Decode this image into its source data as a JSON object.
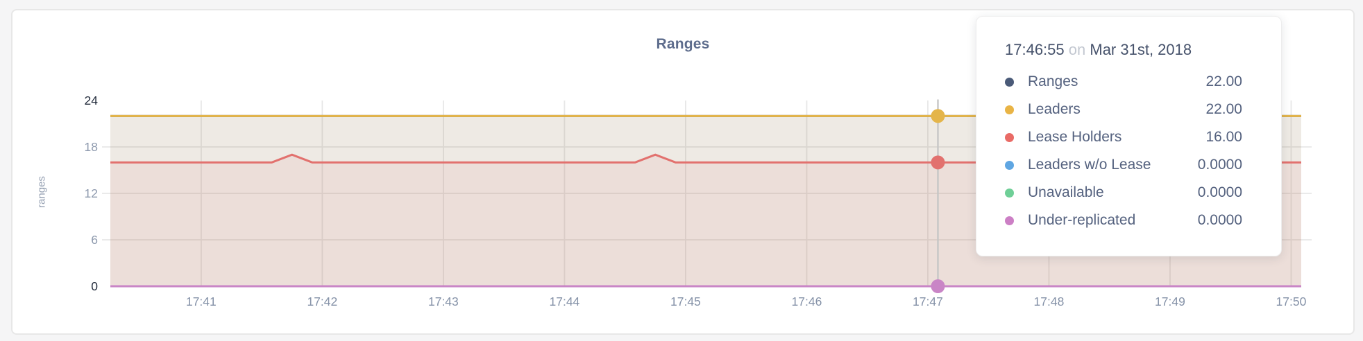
{
  "page": {
    "background": "#F5F5F6"
  },
  "card": {
    "background": "#FFFFFF",
    "border_color": "#E7E7E7"
  },
  "chart_data": {
    "type": "area",
    "title": "Ranges",
    "ylabel": "ranges",
    "xlabel": "",
    "ylim": [
      0,
      24
    ],
    "yticks": [
      0,
      6,
      12,
      18,
      24
    ],
    "xticks": [
      "17:41",
      "17:42",
      "17:43",
      "17:44",
      "17:45",
      "17:46",
      "17:47",
      "17:48",
      "17:49",
      "17:50"
    ],
    "x_range": [
      "17:40:15",
      "17:50:05"
    ],
    "grid": true,
    "grid_color": "#E7E7E7",
    "area_fill_opacity": 0.09,
    "legend_position": "tooltip",
    "series": [
      {
        "name": "Ranges",
        "color": "#4A5A78",
        "points": [
          [
            "17:40:15",
            22
          ],
          [
            "17:50:05",
            22
          ]
        ]
      },
      {
        "name": "Leaders",
        "color": "#E4B54A",
        "points": [
          [
            "17:40:15",
            22
          ],
          [
            "17:50:05",
            22
          ]
        ]
      },
      {
        "name": "Lease Holders",
        "color": "#E2716E",
        "points": [
          [
            "17:40:15",
            16
          ],
          [
            "17:41:35",
            16
          ],
          [
            "17:41:45",
            17
          ],
          [
            "17:41:55",
            16
          ],
          [
            "17:44:35",
            16
          ],
          [
            "17:44:45",
            17
          ],
          [
            "17:44:55",
            16
          ],
          [
            "17:50:05",
            16
          ]
        ]
      },
      {
        "name": "Leaders w/o Lease",
        "color": "#5FA6E2",
        "points": [
          [
            "17:40:15",
            0
          ],
          [
            "17:50:05",
            0
          ]
        ]
      },
      {
        "name": "Unavailable",
        "color": "#6FCF97",
        "points": [
          [
            "17:40:15",
            0
          ],
          [
            "17:50:05",
            0
          ]
        ]
      },
      {
        "name": "Under-replicated",
        "color": "#C985C6",
        "points": [
          [
            "17:40:15",
            0
          ],
          [
            "17:50:05",
            0
          ]
        ]
      }
    ],
    "hover": {
      "x_time": "17:47:05",
      "line_color": "#C6C6C6",
      "dots": [
        {
          "series": "Leaders",
          "value": 22
        },
        {
          "series": "Lease Holders",
          "value": 16
        },
        {
          "series": "Under-replicated",
          "value": 0
        }
      ]
    }
  },
  "tooltip": {
    "time": "17:46:55",
    "on_word": "on",
    "date": "Mar 31st, 2018",
    "rows": [
      {
        "label": "Ranges",
        "value": "22.00",
        "color": "#4A5A78"
      },
      {
        "label": "Leaders",
        "value": "22.00",
        "color": "#E9B445"
      },
      {
        "label": "Lease Holders",
        "value": "16.00",
        "color": "#E96B66"
      },
      {
        "label": "Leaders w/o Lease",
        "value": "0.0000",
        "color": "#5FA6E2"
      },
      {
        "label": "Unavailable",
        "value": "0.0000",
        "color": "#6FCF97"
      },
      {
        "label": "Under-replicated",
        "value": "0.0000",
        "color": "#CC7FC5"
      }
    ]
  }
}
